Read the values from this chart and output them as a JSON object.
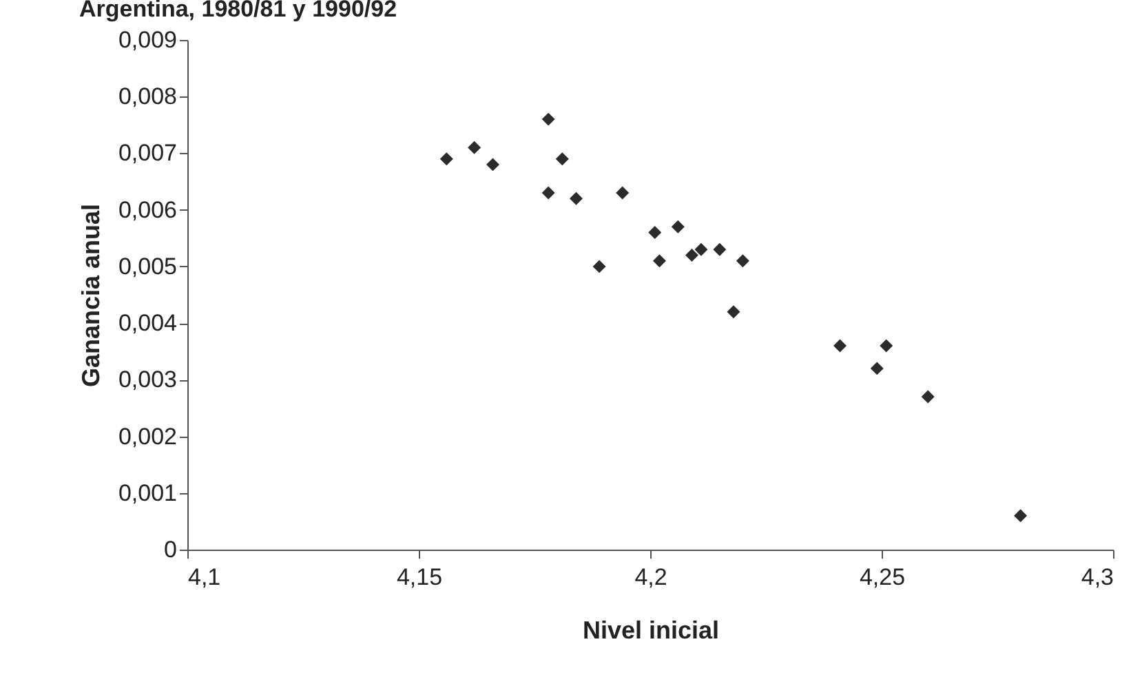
{
  "chart_data": {
    "type": "scatter",
    "title": "Argentina, 1980/81 y 1990/92",
    "xlabel": "Nivel inicial",
    "ylabel": "Ganancia anual",
    "x": [
      4.156,
      4.162,
      4.166,
      4.178,
      4.178,
      4.181,
      4.184,
      4.189,
      4.194,
      4.201,
      4.202,
      4.206,
      4.209,
      4.211,
      4.215,
      4.22,
      4.218,
      4.241,
      4.251,
      4.249,
      4.26,
      4.28
    ],
    "values": [
      0.0069,
      0.0071,
      0.0068,
      0.0076,
      0.0063,
      0.0069,
      0.0062,
      0.005,
      0.0063,
      0.0056,
      0.0051,
      0.0057,
      0.0052,
      0.0053,
      0.0053,
      0.0051,
      0.0042,
      0.0036,
      0.0036,
      0.0032,
      0.0027,
      0.0006
    ],
    "color": "#2b2b2b",
    "marker": "diamond",
    "xlim": [
      4.1,
      4.3
    ],
    "xticks": [
      {
        "value": 4.1,
        "label": "4,1"
      },
      {
        "value": 4.15,
        "label": "4,15"
      },
      {
        "value": 4.2,
        "label": "4,2"
      },
      {
        "value": 4.25,
        "label": "4,25"
      },
      {
        "value": 4.3,
        "label": "4,3"
      }
    ],
    "ylim": [
      0,
      0.009
    ],
    "yticks": [
      0,
      {
        "value": 0.001,
        "label": "0,001"
      },
      {
        "value": 0.002,
        "label": "0,002"
      },
      {
        "value": 0.003,
        "label": "0,003"
      },
      {
        "value": 0.004,
        "label": "0,004"
      },
      {
        "value": 0.005,
        "label": "0,005"
      },
      {
        "value": 0.006,
        "label": "0,006"
      },
      {
        "value": 0.007,
        "label": "0,007"
      },
      {
        "value": 0.008,
        "label": "0,008"
      },
      {
        "value": 0.009,
        "label": "0,009"
      }
    ],
    "grid": false
  }
}
